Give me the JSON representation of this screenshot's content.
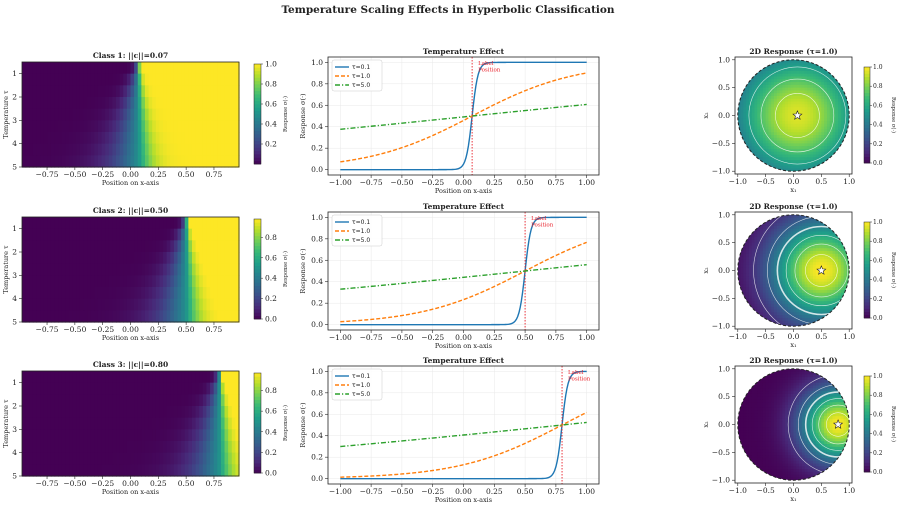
{
  "figure_title": "Temperature Scaling Effects in Hyperbolic Classification",
  "colors": {
    "tau_0_1": "#1f77b4",
    "tau_1_0": "#ff7f0e",
    "tau_5_0": "#2ca02c",
    "label_line": "#e8202a"
  },
  "colormap": "viridis",
  "chart_data": [
    {
      "type": "heatmap",
      "row": 0,
      "title": "Class 1: ||c||=0.07",
      "label_position": 0.07,
      "xlabel": "Position on x-axis",
      "ylabel": "Temperature τ",
      "xlim": [
        -0.975,
        0.975
      ],
      "ylim": [
        0.5,
        5
      ],
      "x_ticks": [
        "−0.75",
        "−0.50",
        "−0.25",
        "0.00",
        "0.25",
        "0.50",
        "0.75"
      ],
      "y_ticks": [
        "1",
        "2",
        "3",
        "4",
        "5"
      ],
      "temperature_rows": [
        0.5,
        1.0,
        1.5,
        2.0,
        2.5,
        3.0,
        3.5,
        4.0,
        4.5
      ],
      "colorbar": {
        "label": "Response σ(·)",
        "range": [
          0.0,
          1.0
        ],
        "ticks": [
          "0.2",
          "0.4",
          "0.6",
          "0.8",
          "1.0"
        ]
      }
    },
    {
      "type": "line",
      "row": 0,
      "title": "Temperature Effect",
      "label_position": 0.07,
      "annotation": "Label\nPosition",
      "xlabel": "Position on x-axis",
      "ylabel": "Response σ(·)",
      "xlim": [
        -1.0,
        1.0
      ],
      "ylim": [
        0.0,
        1.0
      ],
      "x_ticks": [
        "−1.00",
        "−0.75",
        "−0.50",
        "−0.25",
        "0.00",
        "0.25",
        "0.50",
        "0.75",
        "1.00"
      ],
      "y_ticks": [
        "0.0",
        "0.2",
        "0.4",
        "0.6",
        "0.8",
        "1.0"
      ],
      "series": [
        {
          "name": "τ=0.1",
          "tau": 0.1,
          "style": "solid"
        },
        {
          "name": "τ=1.0",
          "tau": 1.0,
          "style": "dashed"
        },
        {
          "name": "τ=5.0",
          "tau": 5.0,
          "style": "dashdot"
        }
      ]
    },
    {
      "type": "heatmap",
      "row": 0,
      "title": "2D Response (τ=1.0)",
      "label_position": 0.07,
      "tau": 1.0,
      "xlabel": "x₁",
      "ylabel": "x₂",
      "xlim": [
        -1.0,
        1.0
      ],
      "ylim": [
        -1.0,
        1.0
      ],
      "x_ticks": [
        "−1.0",
        "−0.5",
        "0.0",
        "0.5",
        "1.0"
      ],
      "y_ticks": [
        "−1.0",
        "−0.5",
        "0.0",
        "0.5",
        "1.0"
      ],
      "contour_label": "0.5",
      "colorbar": {
        "label": "Response σ(·)",
        "range": [
          0.0,
          1.0
        ],
        "ticks": [
          "0.0",
          "0.2",
          "0.4",
          "0.6",
          "0.8",
          "1.0"
        ]
      }
    },
    {
      "type": "heatmap",
      "row": 1,
      "title": "Class 2: ||c||=0.50",
      "label_position": 0.5,
      "xlabel": "Position on x-axis",
      "ylabel": "Temperature τ",
      "xlim": [
        -0.975,
        0.975
      ],
      "ylim": [
        0.5,
        5
      ],
      "x_ticks": [
        "−0.75",
        "−0.50",
        "−0.25",
        "0.00",
        "0.25",
        "0.50",
        "0.75"
      ],
      "y_ticks": [
        "1",
        "2",
        "3",
        "4",
        "5"
      ],
      "temperature_rows": [
        0.5,
        1.0,
        1.5,
        2.0,
        2.5,
        3.0,
        3.5,
        4.0,
        4.5
      ],
      "colorbar": {
        "label": "Response σ(·)",
        "range": [
          0.0,
          0.98
        ],
        "ticks": [
          "0.0",
          "0.2",
          "0.4",
          "0.6",
          "0.8"
        ]
      }
    },
    {
      "type": "line",
      "row": 1,
      "title": "Temperature Effect",
      "label_position": 0.5,
      "annotation": "Label\nPosition",
      "xlabel": "Position on x-axis",
      "ylabel": "Response σ(·)",
      "xlim": [
        -1.0,
        1.0
      ],
      "ylim": [
        0.0,
        1.0
      ],
      "x_ticks": [
        "−1.00",
        "−0.75",
        "−0.50",
        "−0.25",
        "0.00",
        "0.25",
        "0.50",
        "0.75",
        "1.00"
      ],
      "y_ticks": [
        "0.0",
        "0.2",
        "0.4",
        "0.6",
        "0.8",
        "1.0"
      ],
      "series": [
        {
          "name": "τ=0.1",
          "tau": 0.1,
          "style": "solid"
        },
        {
          "name": "τ=1.0",
          "tau": 1.0,
          "style": "dashed"
        },
        {
          "name": "τ=5.0",
          "tau": 5.0,
          "style": "dashdot"
        }
      ]
    },
    {
      "type": "heatmap",
      "row": 1,
      "title": "2D Response (τ=1.0)",
      "label_position": 0.5,
      "tau": 1.0,
      "xlabel": "x₁",
      "ylabel": "x₂",
      "xlim": [
        -1.0,
        1.0
      ],
      "ylim": [
        -1.0,
        1.0
      ],
      "x_ticks": [
        "−1.0",
        "−0.5",
        "0.0",
        "0.5",
        "1.0"
      ],
      "y_ticks": [
        "−1.0",
        "−0.5",
        "0.0",
        "0.5",
        "1.0"
      ],
      "contour_label": "0.5",
      "colorbar": {
        "label": "Response σ(·)",
        "range": [
          0.0,
          1.0
        ],
        "ticks": [
          "0.0",
          "0.2",
          "0.4",
          "0.6",
          "0.8",
          "1.0"
        ]
      }
    },
    {
      "type": "heatmap",
      "row": 2,
      "title": "Class 3: ||c||=0.80",
      "label_position": 0.8,
      "xlabel": "Position on x-axis",
      "ylabel": "Temperature τ",
      "xlim": [
        -0.975,
        0.975
      ],
      "ylim": [
        0.5,
        5
      ],
      "x_ticks": [
        "−0.75",
        "−0.50",
        "−0.25",
        "0.00",
        "0.25",
        "0.50",
        "0.75"
      ],
      "y_ticks": [
        "1",
        "2",
        "3",
        "4",
        "5"
      ],
      "temperature_rows": [
        0.5,
        1.0,
        1.5,
        2.0,
        2.5,
        3.0,
        3.5,
        4.0,
        4.5
      ],
      "colorbar": {
        "label": "Response σ(·)",
        "range": [
          0.0,
          0.97
        ],
        "ticks": [
          "0.0",
          "0.2",
          "0.4",
          "0.6",
          "0.8"
        ]
      }
    },
    {
      "type": "line",
      "row": 2,
      "title": "Temperature Effect",
      "label_position": 0.8,
      "annotation": "Label\nPosition",
      "xlabel": "Position on x-axis",
      "ylabel": "Response σ(·)",
      "xlim": [
        -1.0,
        1.0
      ],
      "ylim": [
        0.0,
        1.0
      ],
      "x_ticks": [
        "−1.00",
        "−0.75",
        "−0.50",
        "−0.25",
        "0.00",
        "0.25",
        "0.50",
        "0.75",
        "1.00"
      ],
      "y_ticks": [
        "0.0",
        "0.2",
        "0.4",
        "0.6",
        "0.8",
        "1.0"
      ],
      "series": [
        {
          "name": "τ=0.1",
          "tau": 0.1,
          "style": "solid"
        },
        {
          "name": "τ=1.0",
          "tau": 1.0,
          "style": "dashed"
        },
        {
          "name": "τ=5.0",
          "tau": 5.0,
          "style": "dashdot"
        }
      ]
    },
    {
      "type": "heatmap",
      "row": 2,
      "title": "2D Response (τ=1.0)",
      "label_position": 0.8,
      "tau": 1.0,
      "xlabel": "x₁",
      "ylabel": "x₂",
      "xlim": [
        -1.0,
        1.0
      ],
      "ylim": [
        -1.0,
        1.0
      ],
      "x_ticks": [
        "−1.0",
        "−0.5",
        "0.0",
        "0.5",
        "1.0"
      ],
      "y_ticks": [
        "−1.0",
        "−0.5",
        "0.0",
        "0.5",
        "1.0"
      ],
      "contour_label": "0.5",
      "colorbar": {
        "label": "Response σ(·)",
        "range": [
          0.0,
          1.0
        ],
        "ticks": [
          "0.0",
          "0.2",
          "0.4",
          "0.6",
          "0.8",
          "1.0"
        ]
      }
    }
  ]
}
